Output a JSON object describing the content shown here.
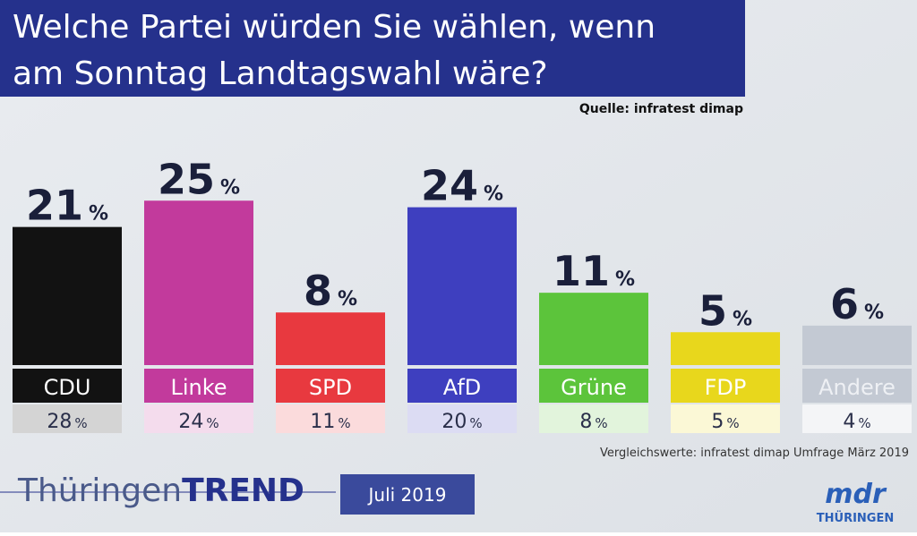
{
  "chart_data": {
    "type": "bar",
    "title": [
      "Welche Partei würden Sie wählen, wenn",
      "am Sonntag Landtagswahl wäre?"
    ],
    "source": "Quelle: infratest dimap",
    "categories": [
      "CDU",
      "Linke",
      "SPD",
      "AfD",
      "Grüne",
      "FDP",
      "Andere"
    ],
    "values": [
      21,
      25,
      8,
      24,
      11,
      5,
      6
    ],
    "previous_values": [
      28,
      24,
      11,
      20,
      8,
      5,
      4
    ],
    "unit": "%",
    "colors": [
      "#121212",
      "#c23a9c",
      "#e8393f",
      "#3e3fbf",
      "#5cc43b",
      "#e8d71c",
      "#c3c9d3"
    ],
    "comparison_note": "Vergleichswerte: infratest dimap Umfrage März 2019",
    "brand_regular": "Thüringen",
    "brand_bold": "TREND",
    "date": "Juli 2019",
    "logo": "mdr",
    "logo_sub": "THÜRINGEN"
  }
}
